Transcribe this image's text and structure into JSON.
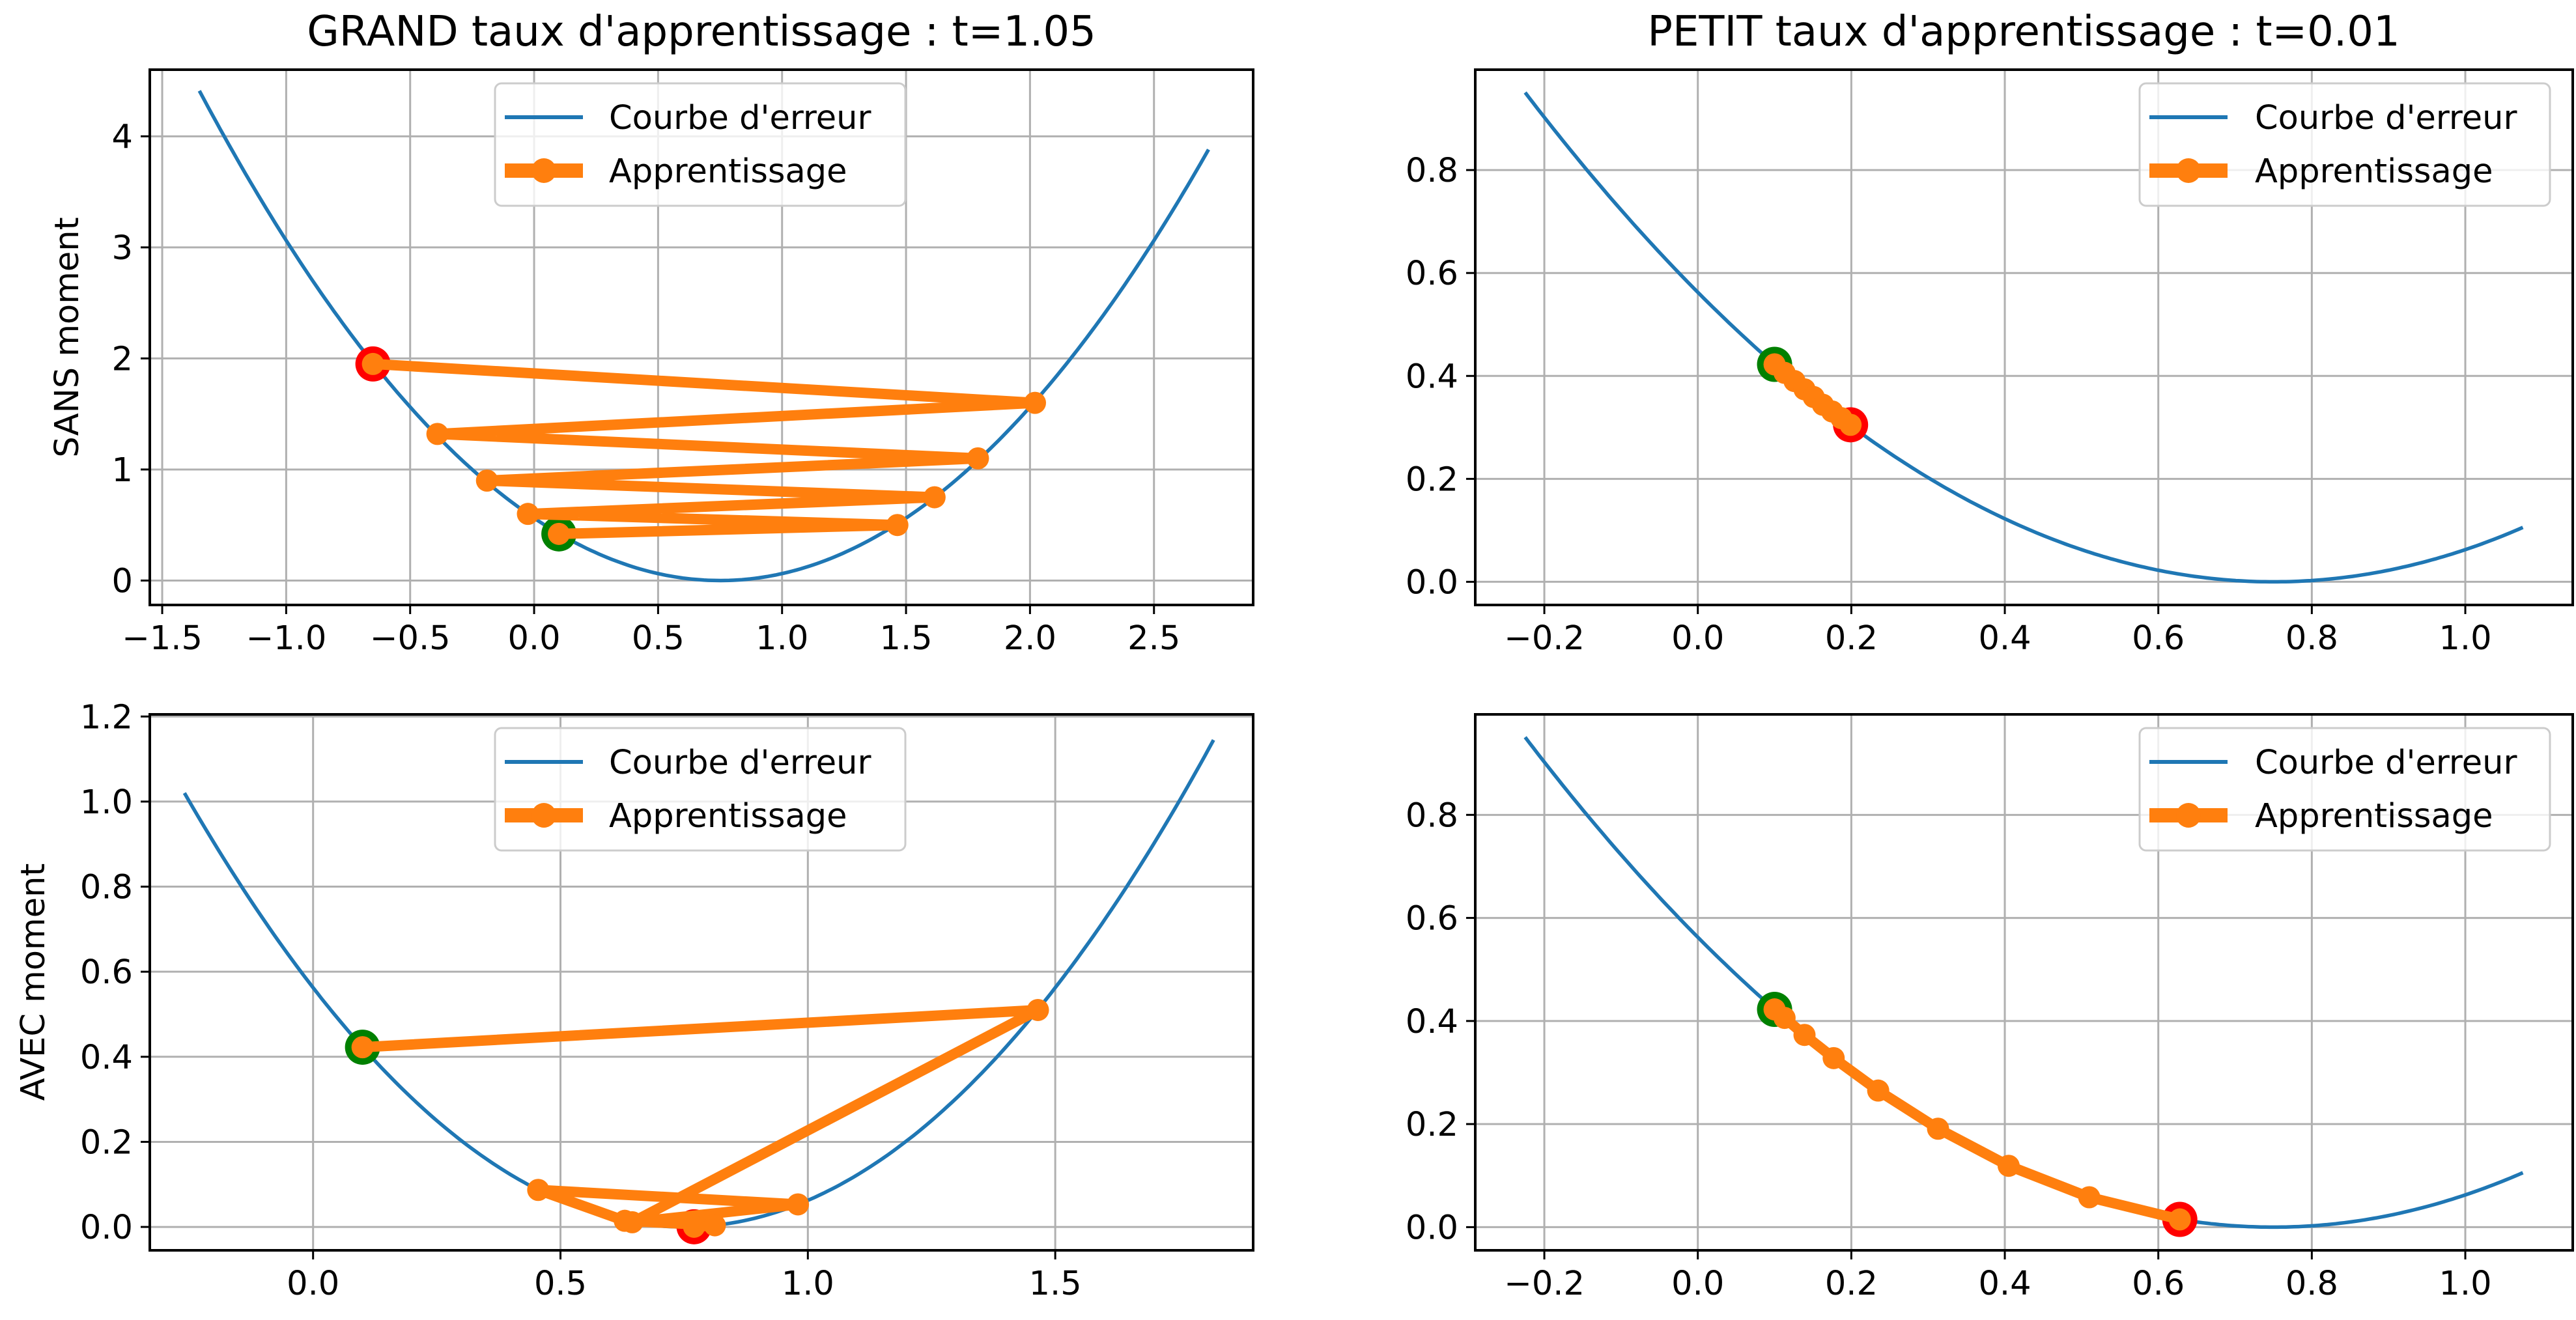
{
  "colors": {
    "curve": "#1f77b4",
    "path": "#ff7f0e",
    "start_marker": "#008000",
    "end_marker": "#ff0000",
    "grid": "#b0b0b0",
    "axes": "#000000"
  },
  "chart_data": [
    {
      "type": "line",
      "title": "GRAND taux d'apprentissage : t=1.05",
      "ylabel": "SANS moment",
      "xlim": [
        -1.55,
        2.9
      ],
      "ylim": [
        -0.22,
        4.6
      ],
      "xticks": [
        -1.5,
        -1.0,
        -0.5,
        0.0,
        0.5,
        1.0,
        1.5,
        2.0,
        2.5
      ],
      "xtick_labels": [
        "−1.5",
        "−1.0",
        "−0.5",
        "0.0",
        "0.5",
        "1.0",
        "1.5",
        "2.0",
        "2.5"
      ],
      "yticks": [
        0,
        1,
        2,
        3,
        4
      ],
      "ytick_labels": [
        "0",
        "1",
        "2",
        "3",
        "4"
      ],
      "grid": true,
      "legend": {
        "placement": "top-center",
        "entries": [
          "Courbe d'erreur",
          "Apprentissage"
        ]
      },
      "curve": {
        "name": "Courbe d'erreur",
        "function": "(x-0.75)^2",
        "x_range": [
          -1.35,
          2.72
        ]
      },
      "path": {
        "name": "Apprentissage",
        "x": [
          0.1,
          1.465,
          -0.025,
          1.615,
          -0.19,
          1.79,
          -0.39,
          2.02,
          -0.65
        ],
        "y": [
          0.42,
          0.5,
          0.6,
          0.75,
          0.9,
          1.1,
          1.32,
          1.6,
          1.95
        ]
      },
      "start_point": {
        "x": 0.1,
        "y": 0.42
      },
      "end_point": {
        "x": -0.65,
        "y": 1.95
      }
    },
    {
      "type": "line",
      "title": "PETIT taux d'apprentissage : t=0.01",
      "ylabel": "",
      "xlim": [
        -0.29,
        1.14
      ],
      "ylim": [
        -0.045,
        0.995
      ],
      "xticks": [
        -0.2,
        0.0,
        0.2,
        0.4,
        0.6,
        0.8,
        1.0
      ],
      "xtick_labels": [
        "−0.2",
        "0.0",
        "0.2",
        "0.4",
        "0.6",
        "0.8",
        "1.0"
      ],
      "yticks": [
        0.0,
        0.2,
        0.4,
        0.6,
        0.8
      ],
      "ytick_labels": [
        "0.0",
        "0.2",
        "0.4",
        "0.6",
        "0.8"
      ],
      "grid": true,
      "legend": {
        "placement": "top-right",
        "entries": [
          "Courbe d'erreur",
          "Apprentissage"
        ]
      },
      "curve": {
        "name": "Courbe d'erreur",
        "function": "(x-0.75)^2",
        "x_range": [
          -0.225,
          1.075
        ]
      },
      "path": {
        "name": "Apprentissage",
        "x": [
          0.1,
          0.113,
          0.126,
          0.139,
          0.151,
          0.163,
          0.175,
          0.187,
          0.199
        ],
        "y": [
          0.4225,
          0.406,
          0.39,
          0.374,
          0.359,
          0.344,
          0.331,
          0.318,
          0.305
        ]
      },
      "start_point": {
        "x": 0.1,
        "y": 0.4225
      },
      "end_point": {
        "x": 0.199,
        "y": 0.305
      }
    },
    {
      "type": "line",
      "title": "",
      "ylabel": "AVEC moment",
      "xlim": [
        -0.33,
        1.9
      ],
      "ylim": [
        -0.055,
        1.205
      ],
      "xticks": [
        0.0,
        0.5,
        1.0,
        1.5
      ],
      "xtick_labels": [
        "0.0",
        "0.5",
        "1.0",
        "1.5"
      ],
      "yticks": [
        0.0,
        0.2,
        0.4,
        0.6,
        0.8,
        1.0,
        1.2
      ],
      "ytick_labels": [
        "0.0",
        "0.2",
        "0.4",
        "0.6",
        "0.8",
        "1.0",
        "1.2"
      ],
      "grid": true,
      "legend": {
        "placement": "top-center",
        "entries": [
          "Courbe d'erreur",
          "Apprentissage"
        ]
      },
      "curve": {
        "name": "Courbe d'erreur",
        "function": "(x-0.75)^2",
        "x_range": [
          -0.26,
          1.82
        ]
      },
      "path": {
        "name": "Apprentissage",
        "x": [
          0.1,
          1.465,
          0.645,
          0.98,
          0.455,
          0.63,
          0.812,
          0.77
        ],
        "y": [
          0.4225,
          0.51,
          0.011,
          0.053,
          0.087,
          0.0144,
          0.0038,
          0.0004
        ]
      },
      "start_point": {
        "x": 0.1,
        "y": 0.4225
      },
      "end_point": {
        "x": 0.77,
        "y": 0.0004
      }
    },
    {
      "type": "line",
      "title": "",
      "ylabel": "",
      "xlim": [
        -0.29,
        1.14
      ],
      "ylim": [
        -0.045,
        0.995
      ],
      "xticks": [
        -0.2,
        0.0,
        0.2,
        0.4,
        0.6,
        0.8,
        1.0
      ],
      "xtick_labels": [
        "−0.2",
        "0.0",
        "0.2",
        "0.4",
        "0.6",
        "0.8",
        "1.0"
      ],
      "yticks": [
        0.0,
        0.2,
        0.4,
        0.6,
        0.8
      ],
      "ytick_labels": [
        "0.0",
        "0.2",
        "0.4",
        "0.6",
        "0.8"
      ],
      "grid": true,
      "legend": {
        "placement": "top-right",
        "entries": [
          "Courbe d'erreur",
          "Apprentissage"
        ]
      },
      "curve": {
        "name": "Courbe d'erreur",
        "function": "(x-0.75)^2",
        "x_range": [
          -0.225,
          1.075
        ]
      },
      "path": {
        "name": "Apprentissage",
        "x": [
          0.1,
          0.113,
          0.139,
          0.177,
          0.235,
          0.313,
          0.405,
          0.51,
          0.628
        ],
        "y": [
          0.4225,
          0.406,
          0.373,
          0.328,
          0.265,
          0.191,
          0.119,
          0.058,
          0.015
        ]
      },
      "start_point": {
        "x": 0.1,
        "y": 0.4225
      },
      "end_point": {
        "x": 0.628,
        "y": 0.015
      }
    }
  ]
}
